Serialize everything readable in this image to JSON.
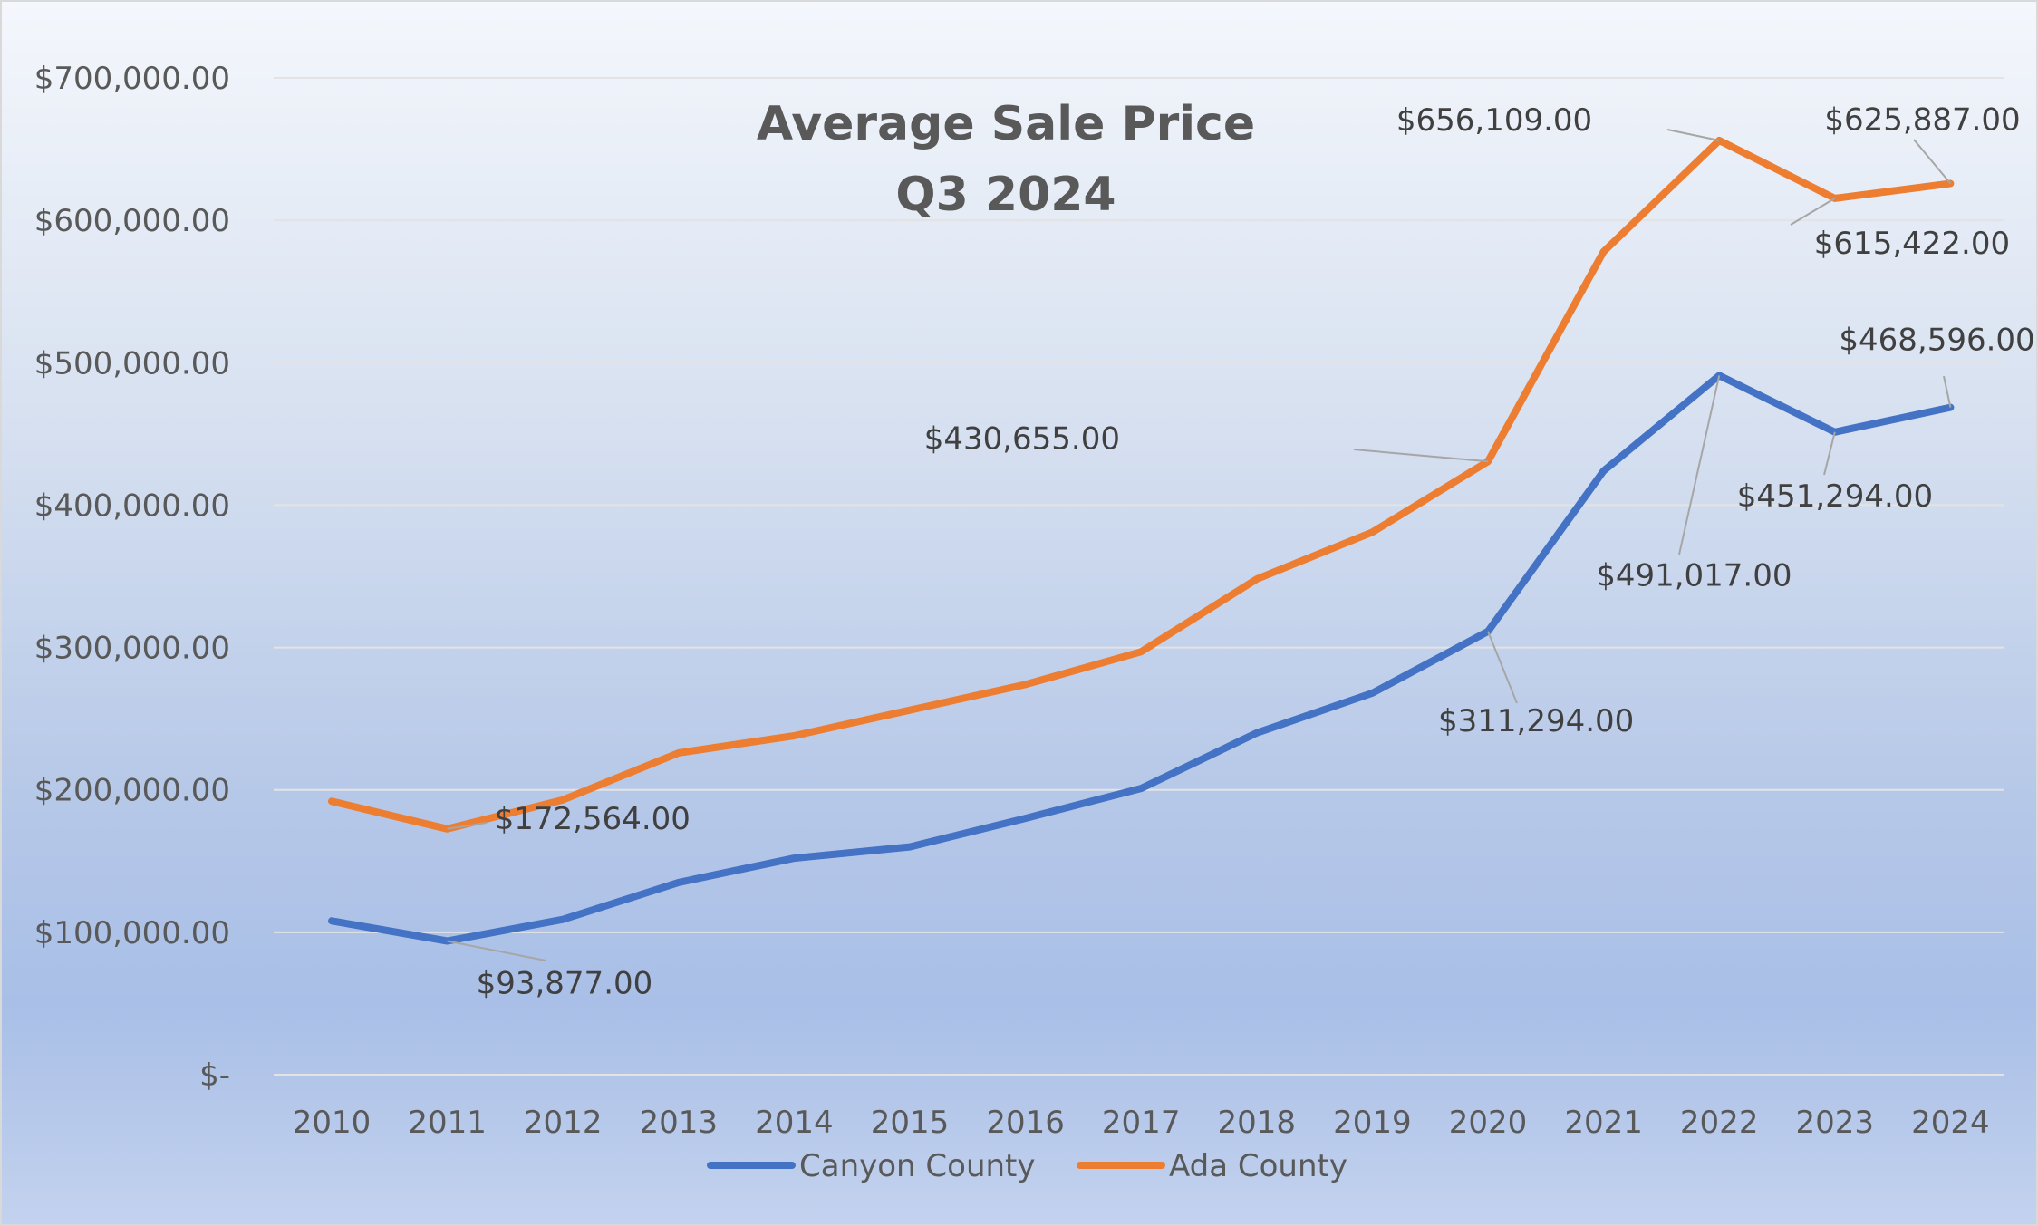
{
  "chart_data": {
    "type": "line",
    "title_lines": [
      "Average Sale Price",
      "Q3 2024"
    ],
    "categories": [
      "2010",
      "2011",
      "2012",
      "2013",
      "2014",
      "2015",
      "2016",
      "2017",
      "2018",
      "2019",
      "2020",
      "2021",
      "2022",
      "2023",
      "2024"
    ],
    "ylim": [
      0,
      700000
    ],
    "y_ticks": [
      {
        "value": 0,
        "label": "$-"
      },
      {
        "value": 100000,
        "label": "$100,000.00"
      },
      {
        "value": 200000,
        "label": "$200,000.00"
      },
      {
        "value": 300000,
        "label": "$300,000.00"
      },
      {
        "value": 400000,
        "label": "$400,000.00"
      },
      {
        "value": 500000,
        "label": "$500,000.00"
      },
      {
        "value": 600000,
        "label": "$600,000.00"
      },
      {
        "value": 700000,
        "label": "$700,000.00"
      }
    ],
    "grid": true,
    "legend_position": "bottom",
    "series": [
      {
        "name": "Canyon County",
        "color": "#4472c4",
        "values": [
          108000,
          93877,
          109000,
          135000,
          152000,
          160000,
          180000,
          201000,
          240000,
          268000,
          311294,
          424000,
          491017,
          451294,
          468596
        ],
        "data_labels": [
          {
            "index": 1,
            "label": "$93,877.00"
          },
          {
            "index": 10,
            "label": "$311,294.00"
          },
          {
            "index": 12,
            "label": "$491,017.00"
          },
          {
            "index": 13,
            "label": "$451,294.00"
          },
          {
            "index": 14,
            "label": "$468,596.00"
          }
        ]
      },
      {
        "name": "Ada County",
        "color": "#ed7d31",
        "values": [
          192000,
          172564,
          193000,
          226000,
          238000,
          256000,
          274000,
          297000,
          348000,
          381000,
          430655,
          578000,
          656109,
          615422,
          625887
        ],
        "data_labels": [
          {
            "index": 1,
            "label": "$172,564.00"
          },
          {
            "index": 10,
            "label": "$430,655.00"
          },
          {
            "index": 12,
            "label": "$656,109.00"
          },
          {
            "index": 13,
            "label": "$615,422.00"
          },
          {
            "index": 14,
            "label": "$625,887.00"
          }
        ]
      }
    ]
  }
}
